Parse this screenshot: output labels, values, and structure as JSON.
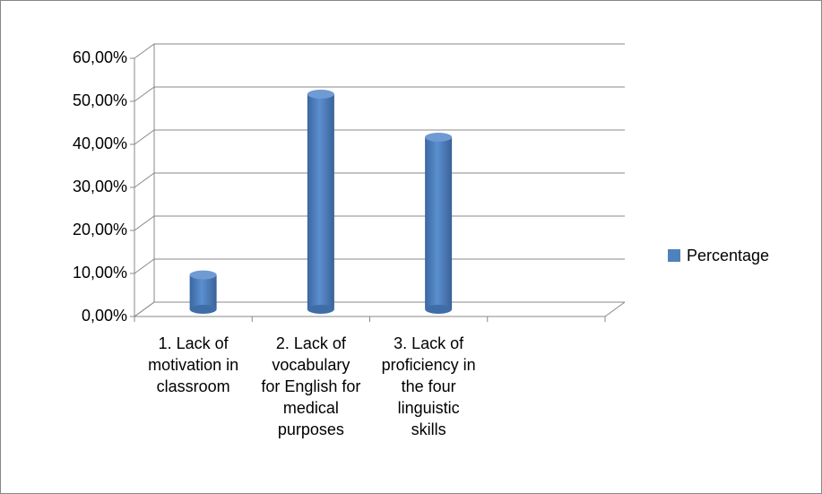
{
  "chart_data": {
    "type": "bar",
    "categories": [
      "1. Lack of motivation in classroom",
      "2. Lack of vocabulary for English for medical purposes",
      "3. Lack of proficiency in the four linguistic skills",
      null
    ],
    "series": [
      {
        "name": "Percentage",
        "color": "#4f81bd",
        "values": [
          8,
          50,
          40,
          null
        ]
      }
    ],
    "ylim": [
      0,
      60
    ],
    "yticks": [
      {
        "value": 0,
        "label": "0,00%"
      },
      {
        "value": 10,
        "label": "10,00%"
      },
      {
        "value": 20,
        "label": "20,00%"
      },
      {
        "value": 30,
        "label": "30,00%"
      },
      {
        "value": 40,
        "label": "40,00%"
      },
      {
        "value": 50,
        "label": "50,00%"
      },
      {
        "value": 60,
        "label": "60,00%"
      }
    ],
    "grid": true,
    "legend": "right"
  }
}
